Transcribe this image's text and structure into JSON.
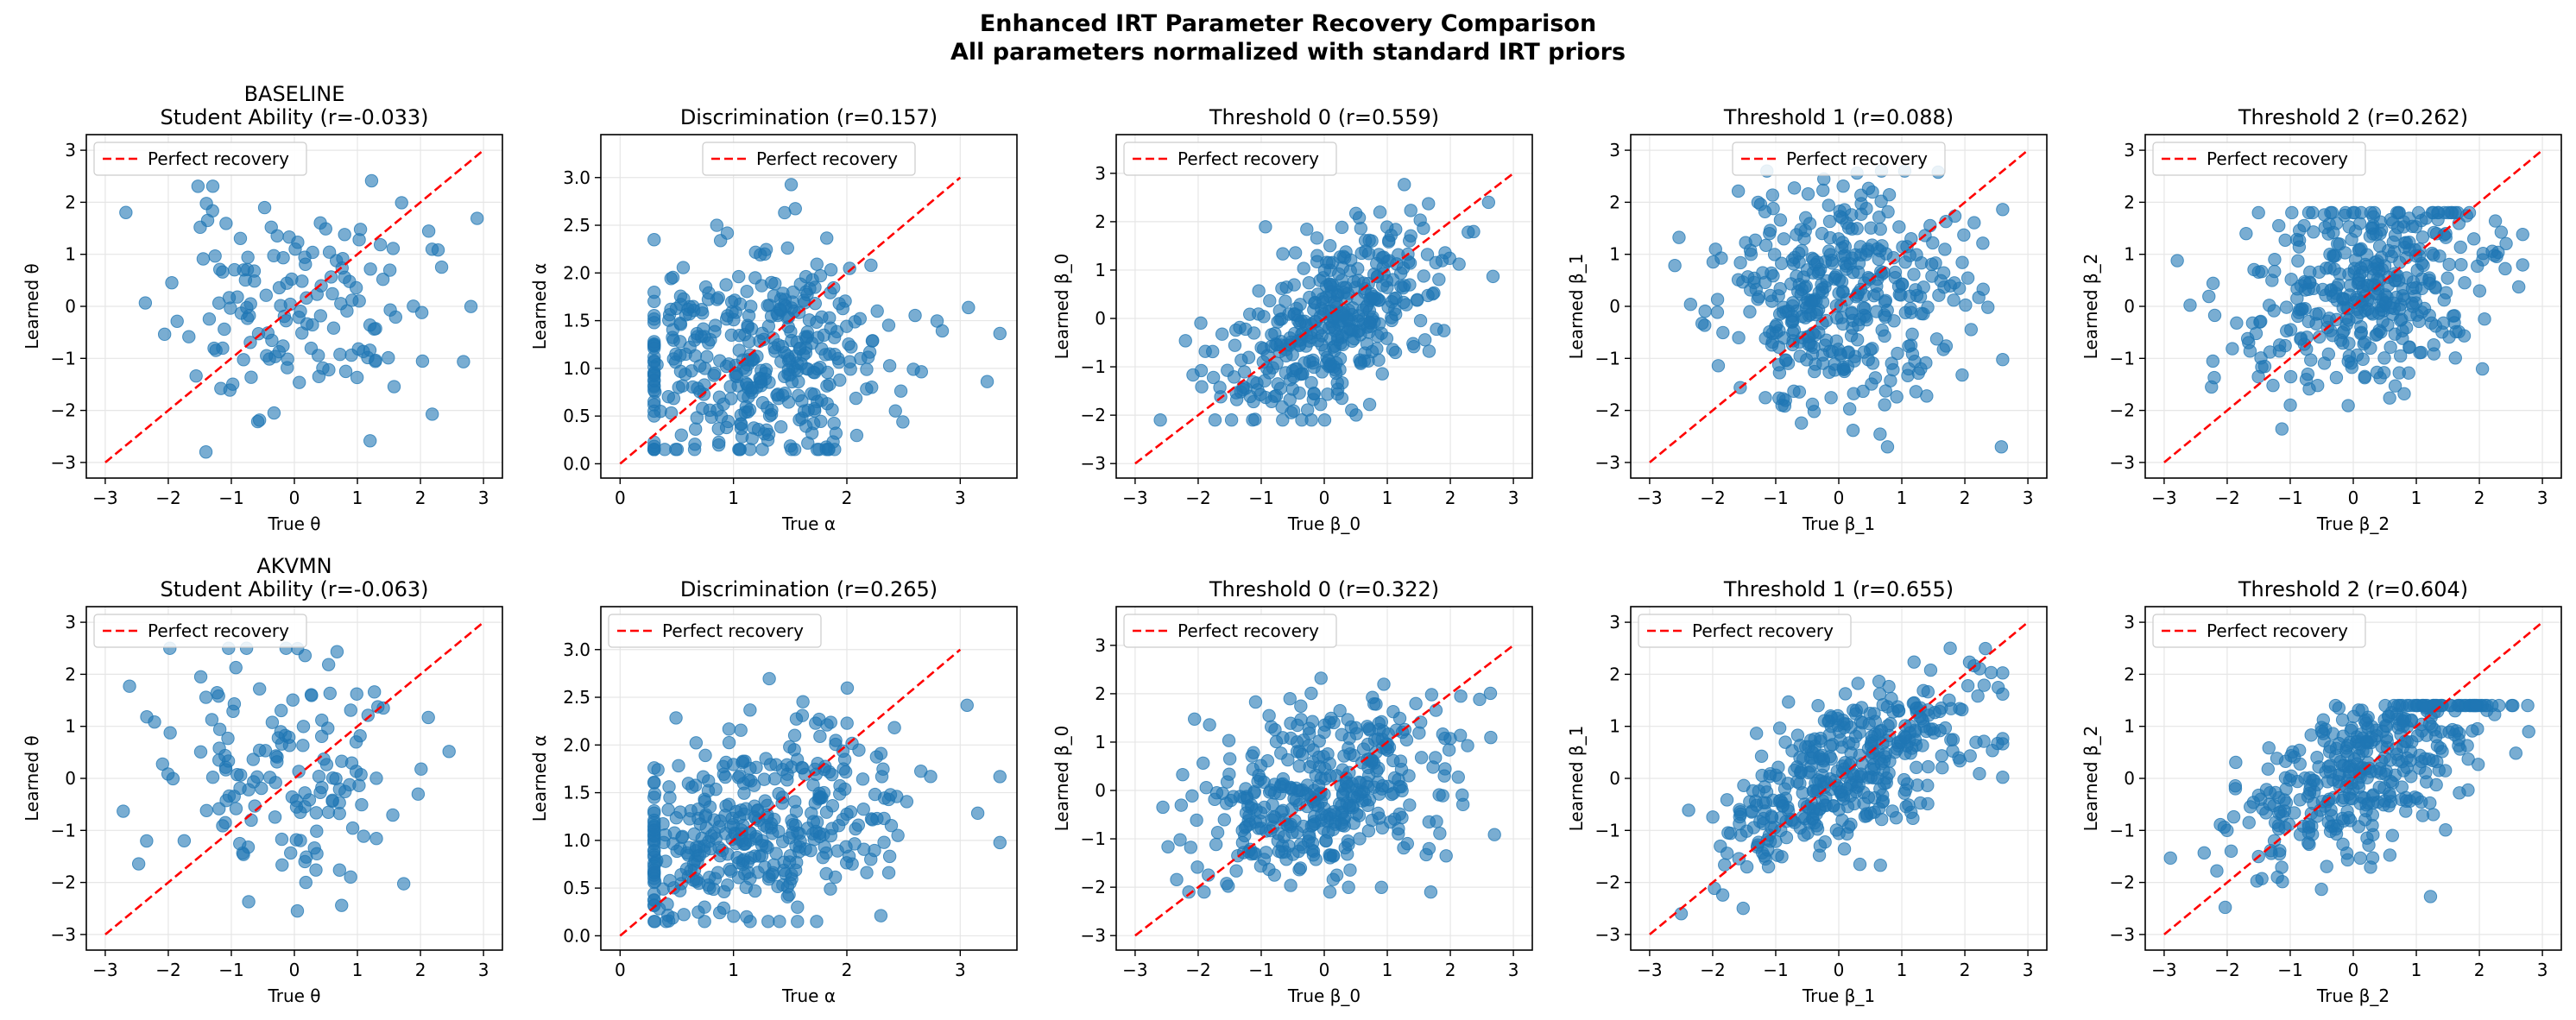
{
  "suptitle": {
    "line1": "Enhanced IRT Parameter Recovery Comparison",
    "line2": "All parameters normalized with standard IRT priors"
  },
  "colors": {
    "points": "#1f77b4",
    "reference": "#ff0000",
    "grid": "#e6e6e6"
  },
  "chart_data": [
    {
      "type": "scatter",
      "model": "BASELINE",
      "title": [
        "BASELINE",
        "Student Ability (r=-0.033)"
      ],
      "xlabel": "True θ",
      "ylabel": "Learned θ",
      "xlim": [
        -3.3,
        3.3
      ],
      "ylim": [
        -3.3,
        3.3
      ],
      "xticks": [
        -3,
        -2,
        -1,
        0,
        1,
        2,
        3
      ],
      "yticks": [
        -3,
        -2,
        -1,
        0,
        1,
        2,
        3
      ],
      "ref": [
        -3,
        3
      ],
      "legend": {
        "label": "Perfect recovery",
        "loc": "upper left"
      },
      "gen": {
        "n": 150,
        "r": -0.033,
        "xd": [
          0,
          1
        ],
        "yd": [
          0,
          1
        ],
        "seed": 11
      }
    },
    {
      "type": "scatter",
      "model": "BASELINE",
      "title": [
        "Discrimination (r=0.157)"
      ],
      "xlabel": "True α",
      "ylabel": "Learned α",
      "xlim": [
        -0.17,
        3.5
      ],
      "ylim": [
        -0.15,
        3.45
      ],
      "xticks": [
        0,
        1,
        2,
        3
      ],
      "yticks": [
        0.0,
        0.5,
        1.0,
        1.5,
        2.0,
        2.5,
        3.0
      ],
      "ref": [
        0,
        3
      ],
      "legend": {
        "label": "Perfect recovery",
        "loc": "upper center"
      },
      "gen": {
        "n": 400,
        "r": 0.157,
        "xd": [
          1.2,
          0.65
        ],
        "yd": [
          1.1,
          0.55
        ],
        "xr": [
          0.3,
          3.35
        ],
        "yr": [
          0.15,
          3.25
        ],
        "seed": 22
      }
    },
    {
      "type": "scatter",
      "model": "BASELINE",
      "title": [
        "Threshold 0 (r=0.559)"
      ],
      "xlabel": "True β_0",
      "ylabel": "Learned β_0",
      "xlim": [
        -3.3,
        3.3
      ],
      "ylim": [
        -3.3,
        3.8
      ],
      "xticks": [
        -3,
        -2,
        -1,
        0,
        1,
        2,
        3
      ],
      "yticks": [
        -3,
        -2,
        -1,
        0,
        1,
        2,
        3
      ],
      "ref": [
        -3,
        3
      ],
      "legend": {
        "label": "Perfect recovery",
        "loc": "upper left"
      },
      "gen": {
        "n": 400,
        "r": 0.559,
        "xd": [
          0.1,
          0.9
        ],
        "yd": [
          -0.1,
          1.0
        ],
        "xr": [
          -2.6,
          2.8
        ],
        "yr": [
          -2.1,
          3.5
        ],
        "seed": 33
      }
    },
    {
      "type": "scatter",
      "model": "BASELINE",
      "title": [
        "Threshold 1 (r=0.088)"
      ],
      "xlabel": "True β_1",
      "ylabel": "Learned β_1",
      "xlim": [
        -3.3,
        3.3
      ],
      "ylim": [
        -3.3,
        3.3
      ],
      "xticks": [
        -3,
        -2,
        -1,
        0,
        1,
        2,
        3
      ],
      "yticks": [
        -3,
        -2,
        -1,
        0,
        1,
        2,
        3
      ],
      "ref": [
        -3,
        3
      ],
      "legend": {
        "label": "Perfect recovery",
        "loc": "upper center"
      },
      "gen": {
        "n": 400,
        "r": 0.088,
        "xd": [
          0,
          1.0
        ],
        "yd": [
          0.1,
          1.0
        ],
        "xr": [
          -2.6,
          2.6
        ],
        "yr": [
          -2.7,
          2.6
        ],
        "seed": 44
      }
    },
    {
      "type": "scatter",
      "model": "BASELINE",
      "title": [
        "Threshold 2 (r=0.262)"
      ],
      "xlabel": "True β_2",
      "ylabel": "Learned β_2",
      "xlim": [
        -3.3,
        3.3
      ],
      "ylim": [
        -3.3,
        3.3
      ],
      "xticks": [
        -3,
        -2,
        -1,
        0,
        1,
        2,
        3
      ],
      "yticks": [
        -3,
        -2,
        -1,
        0,
        1,
        2,
        3
      ],
      "ref": [
        -3,
        3
      ],
      "legend": {
        "label": "Perfect recovery",
        "loc": "upper left"
      },
      "gen": {
        "n": 400,
        "r": 0.262,
        "xd": [
          0.2,
          1.0
        ],
        "yd": [
          0.3,
          1.0
        ],
        "xr": [
          -2.9,
          3.1
        ],
        "yr": [
          -3.1,
          1.8
        ],
        "seed": 55
      }
    },
    {
      "type": "scatter",
      "model": "AKVMN",
      "title": [
        "AKVMN",
        "Student Ability (r=-0.063)"
      ],
      "xlabel": "True θ",
      "ylabel": "Learned θ",
      "xlim": [
        -3.3,
        3.3
      ],
      "ylim": [
        -3.3,
        3.3
      ],
      "xticks": [
        -3,
        -2,
        -1,
        0,
        1,
        2,
        3
      ],
      "yticks": [
        -3,
        -2,
        -1,
        0,
        1,
        2,
        3
      ],
      "ref": [
        -3,
        3
      ],
      "legend": {
        "label": "Perfect recovery",
        "loc": "upper left"
      },
      "gen": {
        "n": 150,
        "r": -0.063,
        "xd": [
          0,
          1
        ],
        "yd": [
          0,
          1
        ],
        "seed": 66
      }
    },
    {
      "type": "scatter",
      "model": "AKVMN",
      "title": [
        "Discrimination (r=0.265)"
      ],
      "xlabel": "True α",
      "ylabel": "Learned α",
      "xlim": [
        -0.17,
        3.5
      ],
      "ylim": [
        -0.15,
        3.45
      ],
      "xticks": [
        0,
        1,
        2,
        3
      ],
      "yticks": [
        0.0,
        0.5,
        1.0,
        1.5,
        2.0,
        2.5,
        3.0
      ],
      "ref": [
        0,
        3
      ],
      "legend": {
        "label": "Perfect recovery",
        "loc": "upper left"
      },
      "gen": {
        "n": 400,
        "r": 0.265,
        "xd": [
          1.2,
          0.65
        ],
        "yd": [
          1.1,
          0.55
        ],
        "xr": [
          0.3,
          3.35
        ],
        "yr": [
          0.15,
          3.3
        ],
        "seed": 77
      }
    },
    {
      "type": "scatter",
      "model": "AKVMN",
      "title": [
        "Threshold 0 (r=0.322)"
      ],
      "xlabel": "True β_0",
      "ylabel": "Learned β_0",
      "xlim": [
        -3.3,
        3.3
      ],
      "ylim": [
        -3.3,
        3.8
      ],
      "xticks": [
        -3,
        -2,
        -1,
        0,
        1,
        2,
        3
      ],
      "yticks": [
        -3,
        -2,
        -1,
        0,
        1,
        2,
        3
      ],
      "ref": [
        -3,
        3
      ],
      "legend": {
        "label": "Perfect recovery",
        "loc": "upper left"
      },
      "gen": {
        "n": 400,
        "r": 0.322,
        "xd": [
          0,
          1.0
        ],
        "yd": [
          0,
          1.0
        ],
        "xr": [
          -2.7,
          2.7
        ],
        "yr": [
          -2.1,
          3.5
        ],
        "seed": 88
      }
    },
    {
      "type": "scatter",
      "model": "AKVMN",
      "title": [
        "Threshold 1 (r=0.655)"
      ],
      "xlabel": "True β_1",
      "ylabel": "Learned β_1",
      "xlim": [
        -3.3,
        3.3
      ],
      "ylim": [
        -3.3,
        3.3
      ],
      "xticks": [
        -3,
        -2,
        -1,
        0,
        1,
        2,
        3
      ],
      "yticks": [
        -3,
        -2,
        -1,
        0,
        1,
        2,
        3
      ],
      "ref": [
        -3,
        3
      ],
      "legend": {
        "label": "Perfect recovery",
        "loc": "upper left"
      },
      "gen": {
        "n": 400,
        "r": 0.655,
        "xd": [
          0.1,
          1.1
        ],
        "yd": [
          0.1,
          0.95
        ],
        "xr": [
          -2.8,
          2.6
        ],
        "yr": [
          -2.6,
          2.5
        ],
        "seed": 99
      }
    },
    {
      "type": "scatter",
      "model": "AKVMN",
      "title": [
        "Threshold 2 (r=0.604)"
      ],
      "xlabel": "True β_2",
      "ylabel": "Learned β_2",
      "xlim": [
        -3.3,
        3.3
      ],
      "ylim": [
        -3.3,
        3.3
      ],
      "xticks": [
        -3,
        -2,
        -1,
        0,
        1,
        2,
        3
      ],
      "yticks": [
        -3,
        -2,
        -1,
        0,
        1,
        2,
        3
      ],
      "ref": [
        -3,
        3
      ],
      "legend": {
        "label": "Perfect recovery",
        "loc": "upper left"
      },
      "gen": {
        "n": 400,
        "r": 0.604,
        "xd": [
          0.2,
          1.0
        ],
        "yd": [
          0.3,
          0.95
        ],
        "xr": [
          -2.9,
          3.1
        ],
        "yr": [
          -2.7,
          1.4
        ],
        "seed": 111
      }
    }
  ]
}
